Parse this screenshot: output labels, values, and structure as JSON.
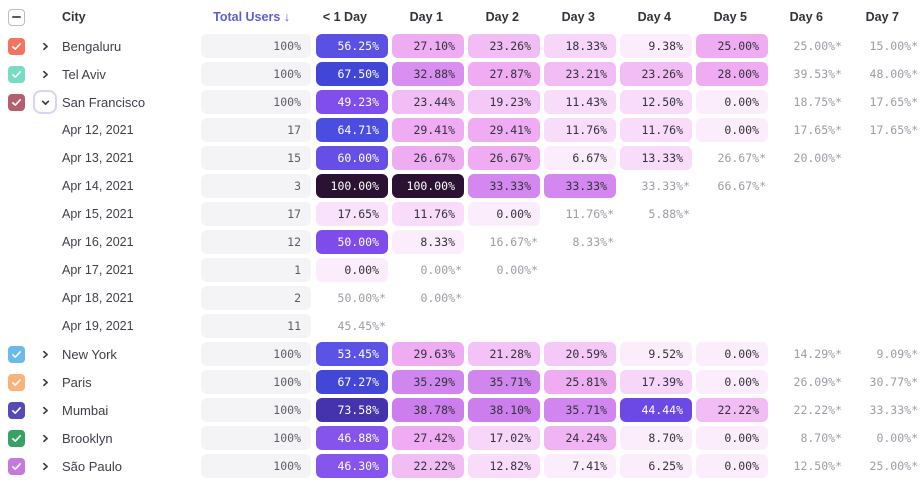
{
  "table": {
    "select_all": {
      "state": "indeterminate"
    },
    "columns": {
      "city": "City",
      "total_users": "Total Users ↓",
      "days": [
        "< 1 Day",
        "Day 1",
        "Day 2",
        "Day 3",
        "Day 4",
        "Day 5",
        "Day 6",
        "Day 7"
      ]
    },
    "colors": {
      "sorted_header": "#5a5fd9",
      "header_text": "#32323c",
      "estimated_text": "#9c9ca5",
      "pill_bg": "#f4f4f6",
      "heat_dark_text": "#ffffff",
      "heat_light_text": "#32323c"
    },
    "rows": [
      {
        "kind": "city",
        "label": "Bengaluru",
        "checkbox": "#f4735e",
        "expanded": false,
        "total": "100%",
        "cells": [
          {
            "v": "56.25%",
            "bg": "#5a50e4",
            "fg": "#ffffff"
          },
          {
            "v": "27.10%",
            "bg": "#efacf3"
          },
          {
            "v": "23.26%",
            "bg": "#f2bcf5"
          },
          {
            "v": "18.33%",
            "bg": "#f7d6f9"
          },
          {
            "v": "9.38%",
            "bg": "#fcedfd"
          },
          {
            "v": "25.00%",
            "bg": "#efacf3"
          },
          {
            "v": "25.00%*",
            "est": true
          },
          {
            "v": "15.00%*",
            "est": true
          }
        ]
      },
      {
        "kind": "city",
        "label": "Tel Aviv",
        "checkbox": "#76dcc5",
        "expanded": false,
        "total": "100%",
        "cells": [
          {
            "v": "67.50%",
            "bg": "#4146d6",
            "fg": "#ffffff"
          },
          {
            "v": "32.88%",
            "bg": "#d98ff0"
          },
          {
            "v": "27.87%",
            "bg": "#efacf3"
          },
          {
            "v": "23.21%",
            "bg": "#f2bcf5"
          },
          {
            "v": "23.26%",
            "bg": "#f2bcf5"
          },
          {
            "v": "28.00%",
            "bg": "#efacf3"
          },
          {
            "v": "39.53%*",
            "est": true
          },
          {
            "v": "48.00%*",
            "est": true
          }
        ]
      },
      {
        "kind": "city",
        "label": "San Francisco",
        "checkbox": "#b35f6d",
        "expanded": true,
        "total": "100%",
        "cells": [
          {
            "v": "49.23%",
            "bg": "#7f4eec",
            "fg": "#ffffff"
          },
          {
            "v": "23.44%",
            "bg": "#f2bcf5"
          },
          {
            "v": "19.23%",
            "bg": "#f4c8f7"
          },
          {
            "v": "11.43%",
            "bg": "#f8dcfa"
          },
          {
            "v": "12.50%",
            "bg": "#f8dcfa"
          },
          {
            "v": "0.00%",
            "bg": "#fcedfd"
          },
          {
            "v": "18.75%*",
            "est": true
          },
          {
            "v": "17.65%*",
            "est": true
          }
        ]
      },
      {
        "kind": "date",
        "label": "Apr 12, 2021",
        "total": "17",
        "cells": [
          {
            "v": "64.71%",
            "bg": "#4a4de0",
            "fg": "#ffffff"
          },
          {
            "v": "29.41%",
            "bg": "#efacf3"
          },
          {
            "v": "29.41%",
            "bg": "#efacf3"
          },
          {
            "v": "11.76%",
            "bg": "#f8dcfa"
          },
          {
            "v": "11.76%",
            "bg": "#f8dcfa"
          },
          {
            "v": "0.00%",
            "bg": "#fcedfd"
          },
          {
            "v": "17.65%*",
            "est": true
          },
          {
            "v": "17.65%*",
            "est": true
          }
        ]
      },
      {
        "kind": "date",
        "label": "Apr 13, 2021",
        "total": "15",
        "cells": [
          {
            "v": "60.00%",
            "bg": "#664fe7",
            "fg": "#ffffff"
          },
          {
            "v": "26.67%",
            "bg": "#efacf3"
          },
          {
            "v": "26.67%",
            "bg": "#efacf3"
          },
          {
            "v": "6.67%",
            "bg": "#fcedfd"
          },
          {
            "v": "13.33%",
            "bg": "#f8dcfa"
          },
          {
            "v": "26.67%*",
            "est": true
          },
          {
            "v": "20.00%*",
            "est": true
          },
          null
        ]
      },
      {
        "kind": "date",
        "label": "Apr 14, 2021",
        "total": "3",
        "cells": [
          {
            "v": "100.00%",
            "bg": "#2b1132",
            "fg": "#ffffff"
          },
          {
            "v": "100.00%",
            "bg": "#2b1132",
            "fg": "#ffffff"
          },
          {
            "v": "33.33%",
            "bg": "#d488ef"
          },
          {
            "v": "33.33%",
            "bg": "#d488ef"
          },
          {
            "v": "33.33%*",
            "est": true
          },
          {
            "v": "66.67%*",
            "est": true
          },
          null,
          null
        ]
      },
      {
        "kind": "date",
        "label": "Apr 15, 2021",
        "total": "17",
        "cells": [
          {
            "v": "17.65%",
            "bg": "#f9e2fb"
          },
          {
            "v": "11.76%",
            "bg": "#f8dcfa"
          },
          {
            "v": "0.00%",
            "bg": "#fcedfd"
          },
          {
            "v": "11.76%*",
            "est": true
          },
          {
            "v": "5.88%*",
            "est": true
          },
          null,
          null,
          null
        ]
      },
      {
        "kind": "date",
        "label": "Apr 16, 2021",
        "total": "12",
        "cells": [
          {
            "v": "50.00%",
            "bg": "#7d4ceb",
            "fg": "#ffffff"
          },
          {
            "v": "8.33%",
            "bg": "#fcedfd"
          },
          {
            "v": "16.67%*",
            "est": true
          },
          {
            "v": "8.33%*",
            "est": true
          },
          null,
          null,
          null,
          null
        ]
      },
      {
        "kind": "date",
        "label": "Apr 17, 2021",
        "total": "1",
        "cells": [
          {
            "v": "0.00%",
            "bg": "#fcedfd"
          },
          {
            "v": "0.00%*",
            "est": true
          },
          {
            "v": "0.00%*",
            "est": true
          },
          null,
          null,
          null,
          null,
          null
        ]
      },
      {
        "kind": "date",
        "label": "Apr 18, 2021",
        "total": "2",
        "cells": [
          {
            "v": "50.00%*",
            "est": true
          },
          {
            "v": "0.00%*",
            "est": true
          },
          null,
          null,
          null,
          null,
          null,
          null
        ]
      },
      {
        "kind": "date",
        "label": "Apr 19, 2021",
        "total": "11",
        "cells": [
          {
            "v": "45.45%*",
            "est": true
          },
          null,
          null,
          null,
          null,
          null,
          null,
          null
        ]
      },
      {
        "kind": "city",
        "label": "New York",
        "checkbox": "#6ab9ef",
        "expanded": false,
        "total": "100%",
        "cells": [
          {
            "v": "53.45%",
            "bg": "#5b52e6",
            "fg": "#ffffff"
          },
          {
            "v": "29.63%",
            "bg": "#efacf3"
          },
          {
            "v": "21.28%",
            "bg": "#f3c2f6"
          },
          {
            "v": "20.59%",
            "bg": "#f4c8f7"
          },
          {
            "v": "9.52%",
            "bg": "#fcedfd"
          },
          {
            "v": "0.00%",
            "bg": "#fcedfd"
          },
          {
            "v": "14.29%*",
            "est": true
          },
          {
            "v": "9.09%*",
            "est": true
          }
        ]
      },
      {
        "kind": "city",
        "label": "Paris",
        "checkbox": "#f9b279",
        "expanded": false,
        "total": "100%",
        "cells": [
          {
            "v": "67.27%",
            "bg": "#4347d8",
            "fg": "#ffffff"
          },
          {
            "v": "35.29%",
            "bg": "#d185ee"
          },
          {
            "v": "35.71%",
            "bg": "#d185ee"
          },
          {
            "v": "25.81%",
            "bg": "#efacf3"
          },
          {
            "v": "17.39%",
            "bg": "#f7d6f9"
          },
          {
            "v": "0.00%",
            "bg": "#fcedfd"
          },
          {
            "v": "26.09%*",
            "est": true
          },
          {
            "v": "30.77%*",
            "est": true
          }
        ]
      },
      {
        "kind": "city",
        "label": "Mumbai",
        "checkbox": "#554bb8",
        "expanded": false,
        "total": "100%",
        "cells": [
          {
            "v": "73.58%",
            "bg": "#4433ac",
            "fg": "#ffffff"
          },
          {
            "v": "38.78%",
            "bg": "#cd7eed"
          },
          {
            "v": "38.10%",
            "bg": "#cd7eed"
          },
          {
            "v": "35.71%",
            "bg": "#d185ee"
          },
          {
            "v": "44.44%",
            "bg": "#6c48e4",
            "fg": "#ffffff"
          },
          {
            "v": "22.22%",
            "bg": "#f2bcf5"
          },
          {
            "v": "22.22%*",
            "est": true
          },
          {
            "v": "33.33%*",
            "est": true
          }
        ]
      },
      {
        "kind": "city",
        "label": "Brooklyn",
        "checkbox": "#3aa164",
        "expanded": false,
        "total": "100%",
        "cells": [
          {
            "v": "46.88%",
            "bg": "#8454ed",
            "fg": "#ffffff"
          },
          {
            "v": "27.42%",
            "bg": "#efacf3"
          },
          {
            "v": "17.02%",
            "bg": "#f7d6f9"
          },
          {
            "v": "24.24%",
            "bg": "#f0b4f5"
          },
          {
            "v": "8.70%",
            "bg": "#fcedfd"
          },
          {
            "v": "0.00%",
            "bg": "#fcedfd"
          },
          {
            "v": "8.70%*",
            "est": true
          },
          {
            "v": "0.00%*",
            "est": true
          }
        ]
      },
      {
        "kind": "city",
        "label": "São Paulo",
        "checkbox": "#c678e0",
        "expanded": false,
        "total": "100%",
        "cells": [
          {
            "v": "46.30%",
            "bg": "#8655ee",
            "fg": "#ffffff"
          },
          {
            "v": "22.22%",
            "bg": "#f2bcf5"
          },
          {
            "v": "12.82%",
            "bg": "#f8dcfa"
          },
          {
            "v": "7.41%",
            "bg": "#fcedfd"
          },
          {
            "v": "6.25%",
            "bg": "#fcedfd"
          },
          {
            "v": "0.00%",
            "bg": "#fcedfd"
          },
          {
            "v": "12.50%*",
            "est": true
          },
          {
            "v": "25.00%*",
            "est": true
          }
        ]
      }
    ]
  }
}
